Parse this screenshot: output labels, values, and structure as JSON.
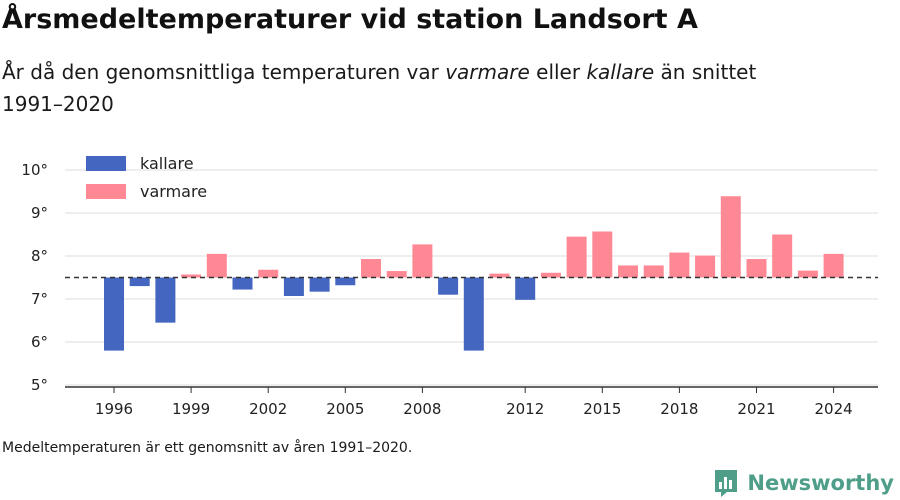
{
  "header": {
    "title": "Årsmedeltemperaturer vid station Landsort A",
    "subtitle_prefix": "År då den genomsnittliga temperaturen var ",
    "subtitle_warm": "varmare",
    "subtitle_mid": " eller ",
    "subtitle_cold": "kallare",
    "subtitle_suffix": " än snittet 1991–2020"
  },
  "footnote": "Medeltemperaturen är ett genomsnitt av åren 1991–2020.",
  "brand": {
    "name": "Newsworthy",
    "icon": "newsworthy-logo-icon"
  },
  "colors": {
    "colder": "#4466c0",
    "warmer": "#ff8895",
    "grid": "#dddddd",
    "axis": "#333333",
    "baseline": "#333333",
    "brand": "#4f9e8a"
  },
  "chart_data": {
    "type": "bar",
    "title": "Årsmedeltemperaturer vid station Landsort A",
    "baseline": 7.5,
    "ylim": [
      5,
      10
    ],
    "yticks": [
      5,
      6,
      7,
      8,
      9,
      10
    ],
    "ytick_labels": [
      "5°",
      "6°",
      "7°",
      "8°",
      "9°",
      "10°"
    ],
    "xtick_labels": [
      "1996",
      "1999",
      "2002",
      "2005",
      "2008",
      "2012",
      "2015",
      "2018",
      "2021",
      "2024"
    ],
    "legend": {
      "placement": "top-left",
      "entries": [
        "kallare",
        "varmare"
      ]
    },
    "series": [
      {
        "name": "kallare",
        "x": [
          1996,
          1997,
          1998,
          2001,
          2003,
          2004,
          2005,
          2009,
          2010,
          2012
        ],
        "values": [
          5.8,
          7.3,
          6.45,
          7.22,
          7.07,
          7.17,
          7.32,
          7.1,
          5.8,
          6.98
        ]
      },
      {
        "name": "varmare",
        "x": [
          1999,
          2000,
          2002,
          2006,
          2007,
          2008,
          2011,
          2013,
          2014,
          2015,
          2016,
          2017,
          2018,
          2019,
          2020,
          2021,
          2022,
          2023,
          2024
        ],
        "values": [
          7.57,
          8.05,
          7.68,
          7.93,
          7.65,
          8.27,
          7.59,
          7.61,
          8.45,
          8.57,
          7.78,
          7.78,
          8.08,
          8.01,
          9.39,
          7.93,
          8.5,
          7.66,
          8.05
        ]
      }
    ]
  }
}
